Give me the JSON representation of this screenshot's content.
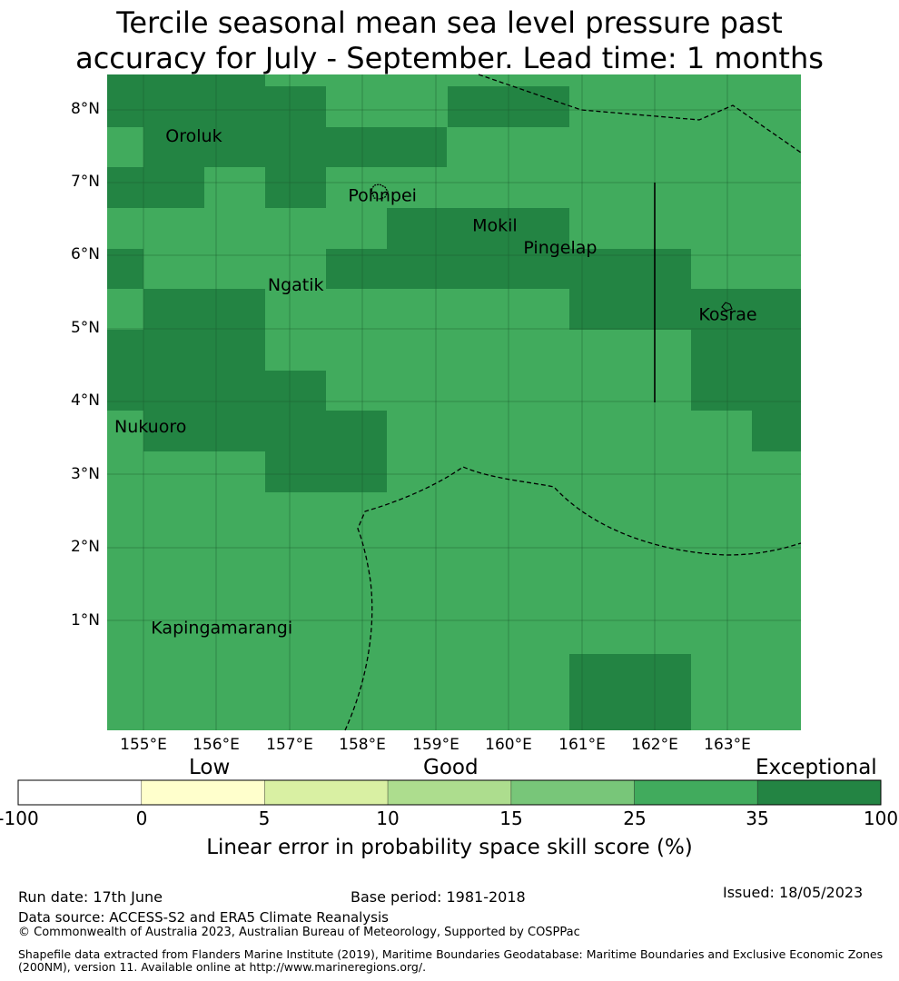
{
  "title": {
    "line1": "Tercile seasonal mean sea level pressure past",
    "line2": "accuracy for July - September. Lead time: 1 months"
  },
  "map": {
    "lat_labels": [
      "8°N",
      "7°N",
      "6°N",
      "5°N",
      "4°N",
      "3°N",
      "2°N",
      "1°N"
    ],
    "lon_labels": [
      "155°E",
      "156°E",
      "157°E",
      "158°E",
      "159°E",
      "160°E",
      "161°E",
      "162°E",
      "163°E"
    ],
    "extent": {
      "lon_min": 154.5,
      "lon_max": 164.0,
      "lat_min": -0.3,
      "lat_max": 8.5
    },
    "places": [
      {
        "name": "Oroluk",
        "lon": 155.3,
        "lat": 7.6
      },
      {
        "name": "Pohnpei",
        "lon": 157.8,
        "lat": 6.8
      },
      {
        "name": "Mokil",
        "lon": 159.5,
        "lat": 6.4
      },
      {
        "name": "Pingelap",
        "lon": 160.2,
        "lat": 6.1
      },
      {
        "name": "Ngatik",
        "lon": 156.7,
        "lat": 5.6
      },
      {
        "name": "Kosrae",
        "lon": 162.6,
        "lat": 5.2
      },
      {
        "name": "Nukuoro",
        "lon": 154.6,
        "lat": 3.7
      },
      {
        "name": "Kapingamarangi",
        "lon": 155.1,
        "lat": 1.0
      }
    ],
    "colors": {
      "good_25_35": "#41ab5d",
      "exceptional_35_100": "#238443"
    }
  },
  "legend": {
    "categories": [
      "Low",
      "Good",
      "Exceptional"
    ],
    "ticks": [
      "-100",
      "0",
      "5",
      "10",
      "15",
      "25",
      "35",
      "100"
    ],
    "colors": [
      "#ffffff",
      "#ffffcc",
      "#d9f0a3",
      "#addd8e",
      "#78c679",
      "#41ab5d",
      "#238443"
    ],
    "label": "Linear error in probability space skill score (%)"
  },
  "footer": {
    "run_date": "Run date: 17th June",
    "base_period": "Base period: 1981-2018",
    "issued": "Issued: 18/05/2023",
    "data_source": "Data source: ACCESS-S2 and ERA5 Climate Reanalysis",
    "copyright": "© Commonwealth of Australia 2023, Australian Bureau of Meteorology, Supported by COSPPac",
    "shapefile_line1": "Shapefile data extracted from Flanders Marine Institute (2019), Maritime Boundaries Geodatabase: Maritime Boundaries and Exclusive Economic Zones",
    "shapefile_line2": "(200NM), version 11. Available online at http://www.marineregions.org/."
  }
}
